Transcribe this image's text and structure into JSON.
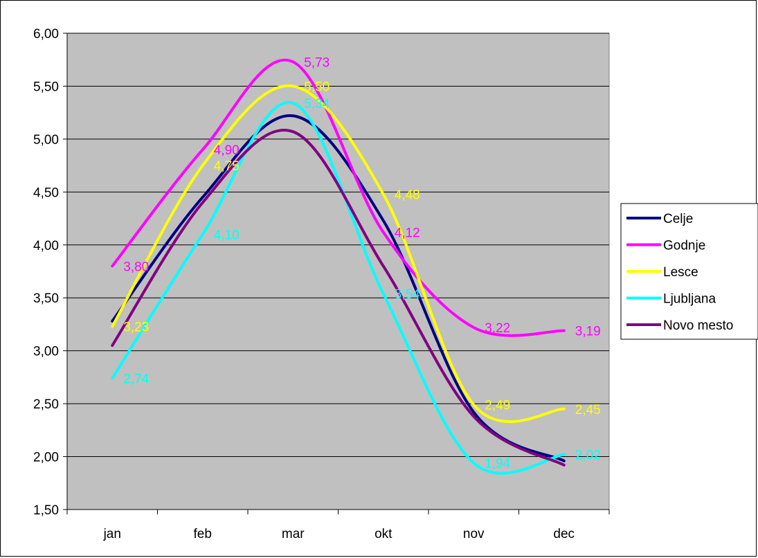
{
  "chart_data": {
    "type": "line",
    "categories": [
      "jan",
      "feb",
      "mar",
      "okt",
      "nov",
      "dec"
    ],
    "ylim": [
      1.5,
      6.0
    ],
    "yticks": [
      "1,50",
      "2,00",
      "2,50",
      "3,00",
      "3,50",
      "4,00",
      "4,50",
      "5,00",
      "5,50",
      "6,00"
    ],
    "grid": "horizontal",
    "legend_position": "right",
    "plot_background": "#c0c0c0",
    "series": [
      {
        "name": "Celje",
        "color": "#000080",
        "values": [
          3.28,
          4.45,
          5.22,
          4.23,
          2.42,
          1.96
        ],
        "labels": []
      },
      {
        "name": "Godnje",
        "color": "#ff00ff",
        "values": [
          3.8,
          4.9,
          5.73,
          4.12,
          3.22,
          3.19
        ],
        "labels": [
          {
            "i": 0,
            "text": "3,80"
          },
          {
            "i": 1,
            "text": "4,90"
          },
          {
            "i": 2,
            "text": "5,73"
          },
          {
            "i": 3,
            "text": "4,12"
          },
          {
            "i": 4,
            "text": "3,22"
          },
          {
            "i": 5,
            "text": "3,19"
          }
        ]
      },
      {
        "name": "Lesce",
        "color": "#ffff00",
        "values": [
          3.23,
          4.75,
          5.5,
          4.48,
          2.49,
          2.45
        ],
        "labels": [
          {
            "i": 0,
            "text": "3,23"
          },
          {
            "i": 1,
            "text": "4,75"
          },
          {
            "i": 2,
            "text": "5,50"
          },
          {
            "i": 3,
            "text": "4,48"
          },
          {
            "i": 4,
            "text": "2,49"
          },
          {
            "i": 5,
            "text": "2,45"
          }
        ]
      },
      {
        "name": "Ljubljana",
        "color": "#00ffff",
        "values": [
          2.74,
          4.1,
          5.34,
          3.54,
          1.94,
          2.02
        ],
        "labels": [
          {
            "i": 0,
            "text": "2,74"
          },
          {
            "i": 1,
            "text": "4,10"
          },
          {
            "i": 2,
            "text": "5,34"
          },
          {
            "i": 3,
            "text": "3,54"
          },
          {
            "i": 4,
            "text": "1,94"
          },
          {
            "i": 5,
            "text": "2,02"
          }
        ]
      },
      {
        "name": "Novo mesto",
        "color": "#800080",
        "values": [
          3.05,
          4.4,
          5.07,
          3.8,
          2.38,
          1.92
        ],
        "labels": []
      }
    ]
  }
}
